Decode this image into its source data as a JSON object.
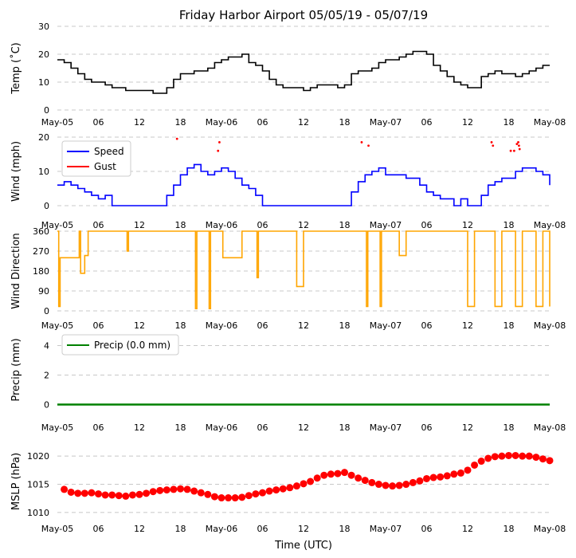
{
  "title": "Friday Harbor Airport 05/05/19 - 05/07/19",
  "xlabel": "Time (UTC)",
  "colors": {
    "temp": "#000000",
    "speed": "#0000ff",
    "gust": "#ff0000",
    "direction": "#ffa500",
    "precip": "#008000",
    "mslp": "#ff0000",
    "grid": "#c8c8c8"
  },
  "chart_data": [
    {
      "type": "line",
      "id": "temp",
      "title": "Friday Harbor Airport 05/05/19 - 05/07/19",
      "ylabel": "Temp (˚C)",
      "xlabel": "",
      "xlim": [
        0,
        72
      ],
      "ylim": [
        0,
        30
      ],
      "yticks": [
        "0",
        "10",
        "20",
        "30"
      ],
      "xticks": [
        "May-05",
        "06",
        "12",
        "18",
        "May-06",
        "06",
        "12",
        "18",
        "May-07",
        "06",
        "12",
        "18",
        "May-08"
      ],
      "series": [
        {
          "name": "Temp",
          "x": [
            0,
            1,
            2,
            3,
            4,
            5,
            6,
            7,
            8,
            9,
            10,
            11,
            12,
            13,
            14,
            15,
            16,
            17,
            18,
            19,
            20,
            21,
            22,
            23,
            24,
            25,
            26,
            27,
            28,
            29,
            30,
            31,
            32,
            33,
            34,
            35,
            36,
            37,
            38,
            39,
            40,
            41,
            42,
            43,
            44,
            45,
            46,
            47,
            48,
            49,
            50,
            51,
            52,
            53,
            54,
            55,
            56,
            57,
            58,
            59,
            60,
            61,
            62,
            63,
            64,
            65,
            66,
            67,
            68,
            69,
            70,
            71,
            72
          ],
          "values": [
            18,
            17,
            15,
            13,
            11,
            10,
            10,
            9,
            8,
            8,
            7,
            7,
            7,
            7,
            6,
            6,
            8,
            11,
            13,
            13,
            14,
            14,
            15,
            17,
            18,
            19,
            19,
            20,
            17,
            16,
            14,
            11,
            9,
            8,
            8,
            8,
            7,
            8,
            9,
            9,
            9,
            8,
            9,
            13,
            14,
            14,
            15,
            17,
            18,
            18,
            19,
            20,
            21,
            21,
            20,
            16,
            14,
            12,
            10,
            9,
            8,
            8,
            12,
            13,
            14,
            13,
            13,
            12,
            13,
            14,
            15,
            16,
            16
          ]
        }
      ]
    },
    {
      "type": "line",
      "id": "wind",
      "ylabel": "Wind (mph)",
      "xlabel": "",
      "xlim": [
        0,
        72
      ],
      "ylim": [
        0,
        20
      ],
      "yticks": [
        "0",
        "10",
        "20"
      ],
      "xticks": [
        "May-05",
        "06",
        "12",
        "18",
        "May-06",
        "06",
        "12",
        "18",
        "May-07",
        "06",
        "12",
        "18",
        "May-08"
      ],
      "legend": [
        "Speed",
        "Gust"
      ],
      "series": [
        {
          "name": "Speed",
          "x": [
            0,
            1,
            2,
            3,
            4,
            5,
            6,
            7,
            8,
            9,
            10,
            11,
            12,
            13,
            14,
            15,
            16,
            17,
            18,
            19,
            20,
            21,
            22,
            23,
            24,
            25,
            26,
            27,
            28,
            29,
            30,
            31,
            32,
            33,
            34,
            35,
            36,
            37,
            38,
            39,
            40,
            41,
            42,
            43,
            44,
            45,
            46,
            47,
            48,
            49,
            50,
            51,
            52,
            53,
            54,
            55,
            56,
            57,
            58,
            59,
            60,
            61,
            62,
            63,
            64,
            65,
            66,
            67,
            68,
            69,
            70,
            71,
            72
          ],
          "values": [
            6,
            7,
            6,
            5,
            4,
            3,
            2,
            3,
            0,
            0,
            0,
            0,
            0,
            0,
            0,
            0,
            3,
            6,
            9,
            11,
            12,
            10,
            9,
            10,
            11,
            10,
            8,
            6,
            5,
            3,
            0,
            0,
            0,
            0,
            0,
            0,
            0,
            0,
            0,
            0,
            0,
            0,
            0,
            4,
            7,
            9,
            10,
            11,
            9,
            9,
            9,
            8,
            8,
            6,
            4,
            3,
            2,
            2,
            0,
            2,
            0,
            0,
            3,
            6,
            7,
            8,
            8,
            10,
            11,
            11,
            10,
            9,
            6
          ]
        },
        {
          "name": "Gust",
          "x": [
            17.5,
            23.5,
            23.7,
            44.5,
            45.5,
            63.5,
            63.7,
            66.3,
            66.8,
            67.2,
            67.4,
            67.5,
            67.6
          ],
          "values": [
            19.5,
            16,
            18.5,
            18.5,
            17.5,
            18.5,
            17.5,
            16,
            16,
            18,
            18.5,
            17.5,
            16.5
          ]
        }
      ]
    },
    {
      "type": "line",
      "id": "direction",
      "ylabel": "Wind Direction",
      "xlabel": "",
      "xlim": [
        0,
        72
      ],
      "ylim": [
        0,
        360
      ],
      "yticks": [
        "0",
        "90",
        "180",
        "270",
        "360"
      ],
      "xticks": [
        "May-05",
        "06",
        "12",
        "18",
        "May-06",
        "06",
        "12",
        "18",
        "May-07",
        "06",
        "12",
        "18",
        "May-08"
      ],
      "series": [
        {
          "name": "Direction",
          "x": [
            0,
            0.2,
            0.4,
            1,
            2,
            3,
            3.2,
            3.4,
            4,
            4.5,
            5,
            6,
            7,
            8,
            9,
            10,
            10.2,
            10.4,
            11,
            12,
            13,
            14,
            15,
            16,
            17,
            18,
            19,
            20,
            20.2,
            20.4,
            21,
            22,
            22.2,
            22.4,
            23,
            24,
            24.2,
            24.4,
            25,
            26,
            27,
            28,
            29,
            29.2,
            29.4,
            30,
            31,
            32,
            33,
            34,
            35,
            36,
            37,
            38,
            39,
            40,
            41,
            42,
            43,
            44,
            45,
            45.2,
            45.4,
            46,
            47,
            47.2,
            47.4,
            48,
            49,
            50,
            51,
            52,
            53,
            54,
            55,
            56,
            57,
            58,
            59,
            60,
            61,
            62,
            63,
            64,
            65,
            66,
            67,
            68,
            69,
            70,
            71,
            72
          ],
          "values": [
            360,
            20,
            240,
            240,
            240,
            240,
            360,
            170,
            250,
            360,
            360,
            360,
            360,
            360,
            360,
            360,
            270,
            360,
            360,
            360,
            360,
            360,
            360,
            360,
            360,
            360,
            360,
            360,
            10,
            360,
            360,
            360,
            10,
            360,
            360,
            360,
            240,
            240,
            240,
            240,
            360,
            360,
            360,
            150,
            360,
            360,
            360,
            360,
            360,
            360,
            110,
            360,
            360,
            360,
            360,
            360,
            360,
            360,
            360,
            360,
            360,
            20,
            360,
            360,
            360,
            20,
            360,
            360,
            360,
            250,
            360,
            360,
            360,
            360,
            360,
            360,
            360,
            360,
            360,
            20,
            360,
            360,
            360,
            20,
            360,
            360,
            20,
            360,
            360,
            20,
            360,
            20
          ]
        }
      ]
    },
    {
      "type": "line",
      "id": "precip",
      "ylabel": "Precip (mm)",
      "xlabel": "",
      "xlim": [
        0,
        72
      ],
      "ylim": [
        -0.3,
        5
      ],
      "yticks": [
        "0",
        "2",
        "4"
      ],
      "xticks": [
        "May-05",
        "06",
        "12",
        "18",
        "May-06",
        "06",
        "12",
        "18",
        "May-07",
        "06",
        "12",
        "18",
        "May-08"
      ],
      "legend": [
        "Precip (0.0 mm)"
      ],
      "series": [
        {
          "name": "Precip (0.0 mm)",
          "x": [
            0,
            72
          ],
          "values": [
            0,
            0
          ]
        }
      ]
    },
    {
      "type": "scatter",
      "id": "mslp",
      "ylabel": "MSLP (hPa)",
      "xlabel": "Time (UTC)",
      "xlim": [
        0,
        72
      ],
      "ylim": [
        1009,
        1022
      ],
      "yticks": [
        "1010",
        "1015",
        "1020"
      ],
      "xticks": [
        "May-05",
        "06",
        "12",
        "18",
        "May-06",
        "06",
        "12",
        "18",
        "May-07",
        "06",
        "12",
        "18",
        "May-08"
      ],
      "series": [
        {
          "name": "MSLP",
          "x": [
            1,
            2,
            3,
            4,
            5,
            6,
            7,
            8,
            9,
            10,
            11,
            12,
            13,
            14,
            15,
            16,
            17,
            18,
            19,
            20,
            21,
            22,
            23,
            24,
            25,
            26,
            27,
            28,
            29,
            30,
            31,
            32,
            33,
            34,
            35,
            36,
            37,
            38,
            39,
            40,
            41,
            42,
            43,
            44,
            45,
            46,
            47,
            48,
            49,
            50,
            51,
            52,
            53,
            54,
            55,
            56,
            57,
            58,
            59,
            60,
            61,
            62,
            63,
            64,
            65,
            66,
            67,
            68,
            69,
            70,
            71,
            72
          ],
          "values": [
            1014.1,
            1013.6,
            1013.4,
            1013.4,
            1013.5,
            1013.3,
            1013.1,
            1013.1,
            1013.0,
            1012.9,
            1013.1,
            1013.2,
            1013.4,
            1013.7,
            1013.9,
            1014.0,
            1014.1,
            1014.2,
            1014.1,
            1013.8,
            1013.5,
            1013.2,
            1012.8,
            1012.6,
            1012.6,
            1012.6,
            1012.7,
            1013.0,
            1013.3,
            1013.5,
            1013.8,
            1014.0,
            1014.2,
            1014.4,
            1014.7,
            1015.1,
            1015.5,
            1016.1,
            1016.6,
            1016.8,
            1016.9,
            1017.1,
            1016.6,
            1016.1,
            1015.7,
            1015.3,
            1015.0,
            1014.8,
            1014.7,
            1014.8,
            1015.0,
            1015.3,
            1015.6,
            1016.0,
            1016.2,
            1016.3,
            1016.5,
            1016.8,
            1017.0,
            1017.5,
            1018.4,
            1019.1,
            1019.6,
            1019.9,
            1020.0,
            1020.1,
            1020.1,
            1020.0,
            1020.0,
            1019.8,
            1019.5,
            1019.2
          ]
        }
      ]
    }
  ]
}
